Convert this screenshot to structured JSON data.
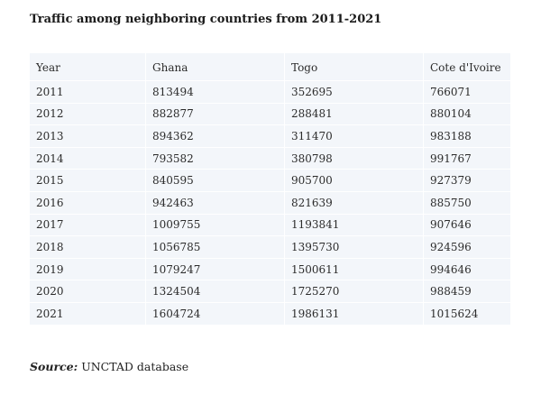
{
  "title": "Traffic among neighboring countries from 2011-2021",
  "source_label": "Source:",
  "source_text": " UNCTAD database",
  "chart_data": {
    "type": "table",
    "title": "Traffic among neighboring countries from 2011-2021",
    "columns": [
      "Year",
      "Ghana",
      "Togo",
      "Cote d'Ivoire"
    ],
    "rows": [
      [
        "2011",
        "813494",
        "352695",
        "766071"
      ],
      [
        "2012",
        "882877",
        "288481",
        "880104"
      ],
      [
        "2013",
        "894362",
        "311470",
        "983188"
      ],
      [
        "2014",
        "793582",
        "380798",
        "991767"
      ],
      [
        "2015",
        "840595",
        "905700",
        "927379"
      ],
      [
        "2016",
        "942463",
        "821639",
        "885750"
      ],
      [
        "2017",
        "1009755",
        "1193841",
        "907646"
      ],
      [
        "2018",
        "1056785",
        "1395730",
        "924596"
      ],
      [
        "2019",
        "1079247",
        "1500611",
        "994646"
      ],
      [
        "2020",
        "1324504",
        "1725270",
        "988459"
      ],
      [
        "2021",
        "1604724",
        "1986131",
        "1015624"
      ]
    ]
  }
}
